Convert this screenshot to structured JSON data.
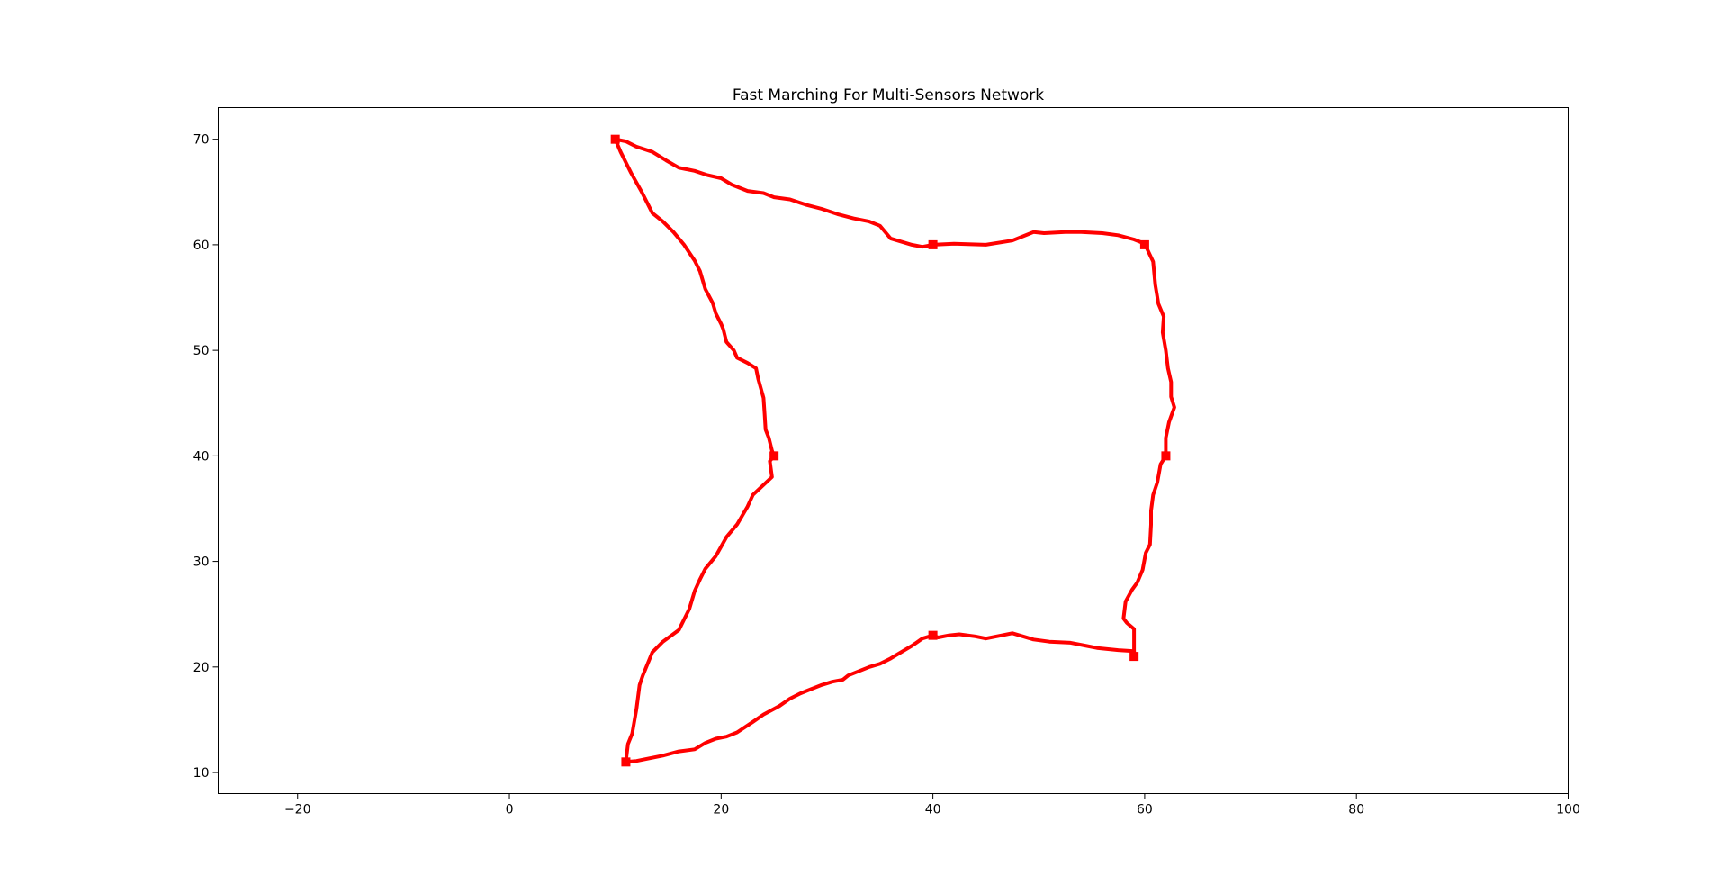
{
  "chart_data": {
    "type": "line",
    "title": "Fast Marching For Multi-Sensors Network",
    "xlabel": "",
    "ylabel": "",
    "xlim": [
      -27.5,
      100
    ],
    "ylim": [
      8,
      73
    ],
    "xticks": [
      -20,
      0,
      20,
      40,
      60,
      80,
      100
    ],
    "yticks": [
      10,
      20,
      30,
      40,
      50,
      60,
      70
    ],
    "grid": false,
    "colors": {
      "line": "#ff0000",
      "marker": "#ff0000"
    },
    "sensors": [
      {
        "x": 10,
        "y": 70
      },
      {
        "x": 40,
        "y": 60
      },
      {
        "x": 60,
        "y": 60
      },
      {
        "x": 62,
        "y": 40
      },
      {
        "x": 59,
        "y": 21
      },
      {
        "x": 40,
        "y": 23
      },
      {
        "x": 11,
        "y": 11
      },
      {
        "x": 25,
        "y": 40
      }
    ],
    "series": [
      {
        "values_xy": [
          [
            10,
            70
          ],
          [
            11,
            69.8
          ],
          [
            12,
            69.3
          ],
          [
            13.5,
            68.8
          ],
          [
            14.8,
            68
          ],
          [
            16,
            67.3
          ],
          [
            17.5,
            67
          ],
          [
            18.7,
            66.6
          ],
          [
            20,
            66.3
          ],
          [
            21,
            65.7
          ],
          [
            22.5,
            65.1
          ],
          [
            24,
            64.9
          ],
          [
            25,
            64.5
          ],
          [
            26.5,
            64.3
          ],
          [
            28,
            63.8
          ],
          [
            29.5,
            63.4
          ],
          [
            31,
            62.9
          ],
          [
            32.5,
            62.5
          ],
          [
            34,
            62.2
          ],
          [
            35,
            61.8
          ],
          [
            36,
            60.6
          ],
          [
            38,
            60
          ],
          [
            39,
            59.8
          ],
          [
            40,
            60
          ]
        ]
      },
      {
        "values_xy": [
          [
            40,
            60
          ],
          [
            42,
            60.1
          ],
          [
            45,
            60
          ],
          [
            47.5,
            60.4
          ],
          [
            49.5,
            61.2
          ],
          [
            50.5,
            61.1
          ],
          [
            52.5,
            61.2
          ],
          [
            54,
            61.2
          ],
          [
            56,
            61.1
          ],
          [
            57.5,
            60.9
          ],
          [
            59,
            60.5
          ],
          [
            60,
            60.1
          ],
          [
            60.8,
            58.4
          ],
          [
            61,
            56.2
          ],
          [
            61.3,
            54.4
          ],
          [
            61.8,
            53.2
          ],
          [
            61.7,
            51.7
          ],
          [
            62,
            50
          ],
          [
            62.2,
            48.3
          ],
          [
            62.5,
            47
          ],
          [
            62.5,
            45.6
          ],
          [
            62.8,
            44.6
          ],
          [
            62.3,
            43.2
          ],
          [
            62,
            41.7
          ],
          [
            62,
            40
          ]
        ]
      },
      {
        "values_xy": [
          [
            62,
            40
          ],
          [
            61.5,
            39.2
          ],
          [
            61.2,
            37.5
          ],
          [
            60.8,
            36.3
          ],
          [
            60.6,
            34.8
          ],
          [
            60.6,
            33.5
          ],
          [
            60.5,
            31.6
          ],
          [
            60.1,
            30.8
          ],
          [
            59.8,
            29.2
          ],
          [
            59.3,
            28
          ],
          [
            58.8,
            27.3
          ],
          [
            58.2,
            26.2
          ],
          [
            58,
            24.6
          ],
          [
            58.3,
            24.2
          ],
          [
            59,
            23.6
          ],
          [
            59,
            21
          ]
        ]
      },
      {
        "values_xy": [
          [
            59,
            21
          ],
          [
            59,
            21.5
          ],
          [
            57.5,
            21.6
          ],
          [
            55.5,
            21.8
          ],
          [
            54.5,
            22
          ],
          [
            53,
            22.3
          ],
          [
            51,
            22.4
          ],
          [
            49.5,
            22.6
          ],
          [
            47.5,
            23.2
          ],
          [
            46.5,
            23
          ],
          [
            45,
            22.7
          ],
          [
            44,
            22.9
          ],
          [
            42.5,
            23.1
          ],
          [
            41.5,
            23
          ],
          [
            40.5,
            22.8
          ],
          [
            40,
            23
          ],
          [
            39,
            22.7
          ],
          [
            38,
            22
          ],
          [
            37,
            21.4
          ],
          [
            36,
            20.8
          ],
          [
            35,
            20.3
          ],
          [
            34,
            20
          ],
          [
            33.5,
            19.8
          ],
          [
            32,
            19.2
          ],
          [
            31.5,
            18.8
          ],
          [
            30.5,
            18.6
          ],
          [
            29.5,
            18.3
          ],
          [
            28.5,
            17.9
          ],
          [
            27.5,
            17.5
          ],
          [
            26.5,
            17
          ],
          [
            25.5,
            16.3
          ],
          [
            24,
            15.5
          ],
          [
            23,
            14.8
          ],
          [
            21.5,
            13.8
          ],
          [
            20.5,
            13.4
          ],
          [
            19.5,
            13.2
          ],
          [
            18.5,
            12.8
          ],
          [
            17.5,
            12.2
          ],
          [
            16,
            12
          ],
          [
            14.5,
            11.6
          ],
          [
            13,
            11.3
          ],
          [
            12,
            11.1
          ],
          [
            11,
            11
          ]
        ]
      },
      {
        "values_xy": [
          [
            11,
            11
          ],
          [
            11.2,
            12.7
          ],
          [
            11.6,
            13.7
          ],
          [
            12,
            16
          ],
          [
            12.3,
            18.3
          ],
          [
            12.6,
            19.2
          ],
          [
            13.5,
            21.4
          ],
          [
            14.5,
            22.4
          ],
          [
            16,
            23.5
          ],
          [
            16.5,
            24.5
          ],
          [
            17,
            25.5
          ],
          [
            17.5,
            27.2
          ],
          [
            18,
            28.3
          ],
          [
            18.5,
            29.3
          ],
          [
            19.5,
            30.5
          ],
          [
            20.5,
            32.3
          ],
          [
            21.5,
            33.5
          ],
          [
            22.5,
            35.2
          ],
          [
            23,
            36.3
          ],
          [
            24.8,
            38
          ],
          [
            24.6,
            39.5
          ],
          [
            25,
            40
          ]
        ]
      },
      {
        "values_xy": [
          [
            25,
            40
          ],
          [
            24.8,
            40.5
          ],
          [
            24.5,
            41.7
          ],
          [
            24.2,
            42.5
          ],
          [
            24.1,
            44
          ],
          [
            24,
            45.5
          ],
          [
            23.5,
            47.3
          ],
          [
            23.3,
            48.3
          ],
          [
            22.5,
            48.8
          ],
          [
            21.5,
            49.3
          ],
          [
            21.2,
            50
          ],
          [
            20.5,
            50.8
          ],
          [
            20.2,
            52
          ],
          [
            20,
            52.5
          ],
          [
            19.5,
            53.5
          ],
          [
            19.2,
            54.5
          ],
          [
            18.5,
            55.8
          ],
          [
            18,
            57.5
          ],
          [
            17.5,
            58.5
          ],
          [
            16.5,
            60
          ],
          [
            15.5,
            61.2
          ],
          [
            14.5,
            62.2
          ],
          [
            13.5,
            63
          ],
          [
            12.5,
            65
          ],
          [
            11.5,
            66.8
          ],
          [
            10.5,
            68.8
          ],
          [
            10,
            70
          ]
        ]
      }
    ]
  }
}
